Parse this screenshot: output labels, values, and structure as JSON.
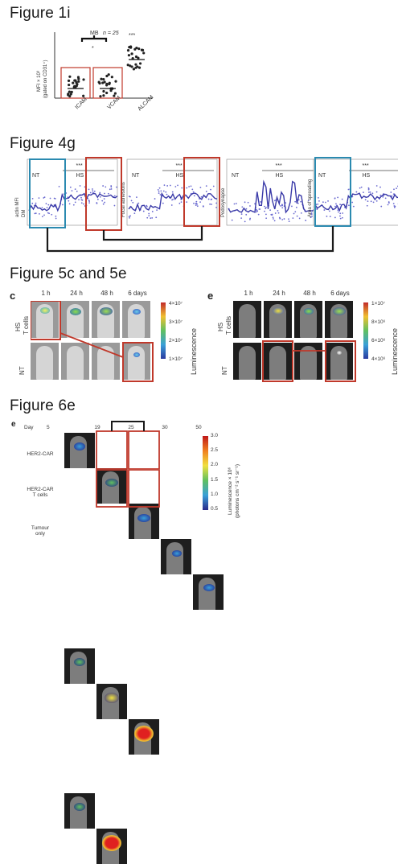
{
  "figures": {
    "fig1i": {
      "title": "Figure 1i",
      "legend": "MB",
      "n_label": "n = 25",
      "ylabel_line1": "MFI × 10³",
      "ylabel_line2": "(gated on CD31⁺)",
      "categories": [
        "ICAM",
        "VCAM",
        "ALCAM"
      ],
      "sig_labels": [
        "*",
        "***"
      ]
    },
    "fig4g": {
      "title": "Figure 4g",
      "panels": [
        {
          "ylabel_line1": "DM",
          "ylabel_line2": "actin MFI",
          "nt": "NT",
          "hs": "HS",
          "sig": "***"
        },
        {
          "ylabel_line1": "Focal adhesions",
          "ylabel_line2": "",
          "nt": "NT",
          "hs": "HS",
          "sig": "***"
        },
        {
          "ylabel_line1": "Podosynapse",
          "ylabel_line2": "",
          "nt": "NT",
          "hs": "HS",
          "sig": "***"
        },
        {
          "ylabel_line1": "Area of spreading",
          "ylabel_line2": "",
          "nt": "NT",
          "hs": "HS",
          "sig": "***"
        }
      ]
    },
    "fig5": {
      "title": "Figure 5c and 5e",
      "panel_c": {
        "letter": "c",
        "times": [
          "1 h",
          "24 h",
          "48 h",
          "6 days"
        ],
        "row1_label_line1": "HS",
        "row1_label_line2": "T cells",
        "row2_label": "NT",
        "scale": [
          "4×10⁷",
          "3×10⁷",
          "2×10⁷",
          "1×10⁷"
        ],
        "scale_title": "Luminescence"
      },
      "panel_e": {
        "letter": "e",
        "times": [
          "1 h",
          "24 h",
          "48 h",
          "6 days"
        ],
        "row1_label_line1": "HS",
        "row1_label_line2": "T cells",
        "row2_label": "NT",
        "scale": [
          "1×10⁷",
          "8×10⁶",
          "6×10⁶",
          "4×10⁶"
        ],
        "scale_title": "Luminescence"
      }
    },
    "fig6e": {
      "title": "Figure 6e",
      "letter": "e",
      "day_label": "Day",
      "days": [
        "5",
        "19",
        "25",
        "30",
        "50"
      ],
      "row_labels": [
        {
          "line1": "HER2-CAR",
          "line2": ""
        },
        {
          "line1": "HER2-CAR",
          "line2": "T cells"
        },
        {
          "line1": "Tumour",
          "line2": "only"
        }
      ],
      "scale": [
        "3.0",
        "2.5",
        "2.0",
        "1.5",
        "1.0",
        "0.5"
      ],
      "scale_title_line1": "Luminescence × 10⁶",
      "scale_title_line2": "(photons cm⁻² s⁻¹ sr⁻¹)"
    }
  },
  "colors": {
    "highlight_red": "#c0392b",
    "highlight_blue": "#2b8ab0",
    "data_blue": "#3a3aa8",
    "connector": "#1a1a1a"
  }
}
